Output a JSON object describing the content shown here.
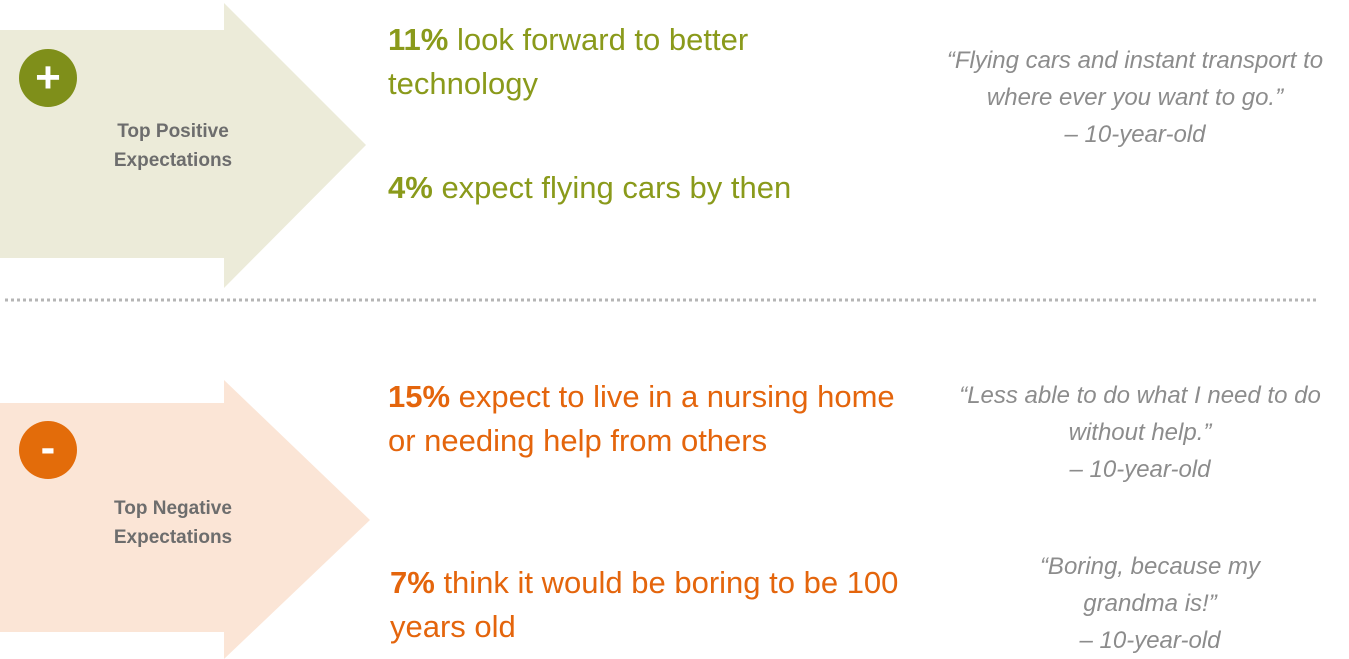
{
  "sections": [
    {
      "icon": "+",
      "label": "Top Positive Expectations",
      "stats": [
        {
          "percent": "11%",
          "text": "look forward to better technology"
        },
        {
          "percent": "4%",
          "text": "expect flying cars by then"
        }
      ],
      "quotes": [
        {
          "text": "“Flying cars and instant transport to where ever you want to go.”",
          "attribution": "– 10-year-old"
        }
      ]
    },
    {
      "icon": "-",
      "label": "Top Negative Expectations",
      "stats": [
        {
          "percent": "15%",
          "text": "expect to live in a nursing home or needing help from others"
        },
        {
          "percent": "7%",
          "text": "think it would be boring to be 100 years old"
        }
      ],
      "quotes": [
        {
          "text": "“Less able to do what I need to do without help.”",
          "attribution": "– 10-year-old"
        },
        {
          "text": "“Boring, because my grandma is!”",
          "attribution": "– 10-year-old"
        }
      ]
    }
  ]
}
